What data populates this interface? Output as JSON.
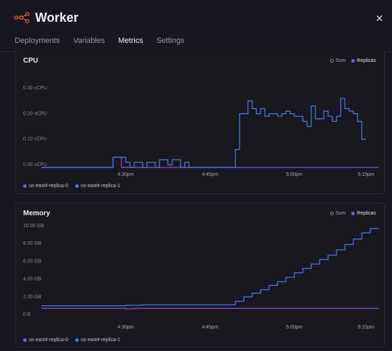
{
  "header": {
    "title": "Worker",
    "close_icon": "close-icon",
    "logo_icon": "service-nodes-icon",
    "tabs": [
      {
        "label": "Deployments",
        "active": false
      },
      {
        "label": "Variables",
        "active": false
      },
      {
        "label": "Metrics",
        "active": true
      },
      {
        "label": "Settings",
        "active": false
      }
    ]
  },
  "colors": {
    "replica0": "#8c4de6",
    "replica1": "#4a7cf0",
    "accent": "#e85d4a"
  },
  "cards": [
    {
      "title": "CPU",
      "legend_top": {
        "sum": "Sum",
        "replicas": "Replicas"
      },
      "legend_bottom": [
        "us-east4-replica-0",
        "us-east4-replica-1"
      ]
    },
    {
      "title": "Memory",
      "legend_top": {
        "sum": "Sum",
        "replicas": "Replicas"
      },
      "legend_bottom": [
        "us-east4-replica-0",
        "us-east4-replica-1"
      ]
    }
  ],
  "chart_data": [
    {
      "type": "line",
      "title": "CPU",
      "x_ticks": [
        "4:30pm",
        "4:45pm",
        "5:00pm",
        "5:15pm"
      ],
      "y_ticks": [
        "0.00 vCPU",
        "0.10 vCPU",
        "0.20 vCPU",
        "0.30 vCPU"
      ],
      "ylim": [
        0,
        0.33
      ],
      "xlim": [
        0,
        80
      ],
      "x_tick_positions": [
        20,
        40,
        60,
        77
      ],
      "series": [
        {
          "name": "us-east4-replica-0",
          "color": "#8c4de6",
          "points": [
            [
              0,
              0.0
            ],
            [
              17,
              0.0
            ],
            [
              17,
              0.04
            ],
            [
              19,
              0.04
            ],
            [
              19,
              0.0
            ],
            [
              80,
              0.0
            ]
          ]
        },
        {
          "name": "us-east4-replica-1",
          "color": "#4a7cf0",
          "points": [
            [
              0,
              0.0
            ],
            [
              17,
              0.0
            ],
            [
              17,
              0.04
            ],
            [
              20,
              0.04
            ],
            [
              20,
              0.02
            ],
            [
              21,
              0.02
            ],
            [
              21,
              0.0
            ],
            [
              22,
              0.0
            ],
            [
              22,
              0.02
            ],
            [
              24,
              0.02
            ],
            [
              24,
              0.0
            ],
            [
              25,
              0.0
            ],
            [
              25,
              0.02
            ],
            [
              27,
              0.02
            ],
            [
              27,
              0.0
            ],
            [
              28,
              0.0
            ],
            [
              28,
              0.03
            ],
            [
              30,
              0.03
            ],
            [
              30,
              0.01
            ],
            [
              31,
              0.01
            ],
            [
              31,
              0.03
            ],
            [
              33,
              0.03
            ],
            [
              33,
              0.0
            ],
            [
              34,
              0.0
            ],
            [
              34,
              0.02
            ],
            [
              35,
              0.02
            ],
            [
              35,
              0.0
            ],
            [
              46,
              0.0
            ],
            [
              46,
              0.07
            ],
            [
              47,
              0.07
            ],
            [
              47,
              0.21
            ],
            [
              49,
              0.21
            ],
            [
              49,
              0.26
            ],
            [
              50,
              0.26
            ],
            [
              50,
              0.23
            ],
            [
              51,
              0.23
            ],
            [
              51,
              0.21
            ],
            [
              52,
              0.21
            ],
            [
              52,
              0.23
            ],
            [
              53,
              0.23
            ],
            [
              53,
              0.2
            ],
            [
              54,
              0.2
            ],
            [
              54,
              0.21
            ],
            [
              56,
              0.21
            ],
            [
              56,
              0.2
            ],
            [
              57,
              0.2
            ],
            [
              57,
              0.21
            ],
            [
              58,
              0.21
            ],
            [
              58,
              0.22
            ],
            [
              59,
              0.22
            ],
            [
              59,
              0.21
            ],
            [
              60,
              0.21
            ],
            [
              60,
              0.2
            ],
            [
              62,
              0.2
            ],
            [
              62,
              0.18
            ],
            [
              63,
              0.18
            ],
            [
              63,
              0.16
            ],
            [
              64,
              0.16
            ],
            [
              64,
              0.24
            ],
            [
              65,
              0.24
            ],
            [
              65,
              0.19
            ],
            [
              67,
              0.19
            ],
            [
              67,
              0.22
            ],
            [
              68,
              0.22
            ],
            [
              68,
              0.2
            ],
            [
              69,
              0.2
            ],
            [
              69,
              0.18
            ],
            [
              70,
              0.18
            ],
            [
              70,
              0.2
            ],
            [
              71,
              0.2
            ],
            [
              71,
              0.27
            ],
            [
              72,
              0.27
            ],
            [
              72,
              0.23
            ],
            [
              73,
              0.23
            ],
            [
              73,
              0.22
            ],
            [
              74,
              0.22
            ],
            [
              74,
              0.21
            ],
            [
              75,
              0.21
            ],
            [
              75,
              0.18
            ],
            [
              76,
              0.18
            ],
            [
              76,
              0.11
            ],
            [
              77,
              0.11
            ]
          ]
        }
      ]
    },
    {
      "type": "line",
      "title": "Memory",
      "x_ticks": [
        "4:30pm",
        "4:45pm",
        "5:00pm",
        "5:15pm"
      ],
      "y_ticks": [
        "0 B",
        "2.00 GB",
        "4.00 GB",
        "6.00 GB",
        "8.00 GB",
        "10.00 GB"
      ],
      "ylim": [
        0,
        10.3
      ],
      "xlim": [
        0,
        80
      ],
      "x_tick_positions": [
        20,
        40,
        60,
        77
      ],
      "series": [
        {
          "name": "us-east4-replica-0",
          "color": "#8c4de6",
          "points": [
            [
              0,
              1.0
            ],
            [
              20,
              1.0
            ],
            [
              20,
              0.95
            ],
            [
              22,
              0.95
            ],
            [
              22,
              1.0
            ],
            [
              80,
              1.0
            ]
          ]
        },
        {
          "name": "us-east4-replica-1",
          "color": "#4a7cf0",
          "points": [
            [
              0,
              1.3
            ],
            [
              20,
              1.3
            ],
            [
              20,
              1.35
            ],
            [
              24,
              1.35
            ],
            [
              24,
              1.4
            ],
            [
              46,
              1.4
            ],
            [
              46,
              1.8
            ],
            [
              48,
              1.8
            ],
            [
              48,
              2.3
            ],
            [
              50,
              2.3
            ],
            [
              50,
              2.7
            ],
            [
              52,
              2.7
            ],
            [
              52,
              3.1
            ],
            [
              54,
              3.1
            ],
            [
              54,
              3.6
            ],
            [
              56,
              3.6
            ],
            [
              56,
              4.0
            ],
            [
              58,
              4.0
            ],
            [
              58,
              4.5
            ],
            [
              60,
              4.5
            ],
            [
              60,
              5.0
            ],
            [
              62,
              5.0
            ],
            [
              62,
              5.5
            ],
            [
              64,
              5.5
            ],
            [
              64,
              6.0
            ],
            [
              66,
              6.0
            ],
            [
              66,
              6.5
            ],
            [
              68,
              6.5
            ],
            [
              68,
              7.0
            ],
            [
              70,
              7.0
            ],
            [
              70,
              7.6
            ],
            [
              72,
              7.6
            ],
            [
              72,
              8.2
            ],
            [
              74,
              8.2
            ],
            [
              74,
              8.8
            ],
            [
              76,
              8.8
            ],
            [
              76,
              9.5
            ],
            [
              78,
              9.5
            ],
            [
              78,
              10.0
            ],
            [
              80,
              10.0
            ]
          ]
        }
      ]
    }
  ]
}
